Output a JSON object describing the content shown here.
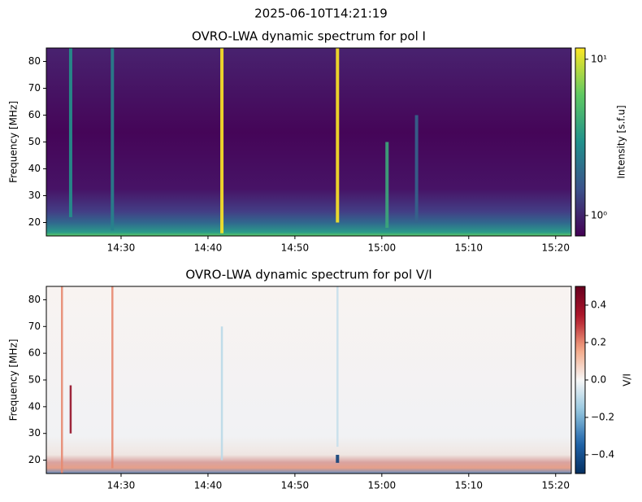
{
  "title": "2025-06-10T14:21:19",
  "chart_data": [
    {
      "type": "heatmap",
      "title": "OVRO-LWA dynamic spectrum for pol I",
      "ylabel": "Frequency [MHz]",
      "xlim": [
        861.4,
        921.8
      ],
      "xticks": [
        {
          "value": 870,
          "label": "14:30"
        },
        {
          "value": 880,
          "label": "14:40"
        },
        {
          "value": 890,
          "label": "14:50"
        },
        {
          "value": 900,
          "label": "15:00"
        },
        {
          "value": 910,
          "label": "15:10"
        },
        {
          "value": 920,
          "label": "15:20"
        }
      ],
      "ylim": [
        15,
        85
      ],
      "yticks": [
        20,
        30,
        40,
        50,
        60,
        70,
        80
      ],
      "colormap": "viridis",
      "colorscale": "log",
      "clim": [
        0.74,
        11.8
      ],
      "cticks": [
        {
          "value": 1,
          "label": "10⁰"
        },
        {
          "value": 10,
          "label": "10¹"
        }
      ],
      "clabel": "Intensity [s.f.u]",
      "bursts": [
        {
          "x": 864.2,
          "freq": [
            22,
            85
          ],
          "value": 3
        },
        {
          "x": 869.0,
          "freq": [
            17,
            85
          ],
          "value": 2.5
        },
        {
          "x": 881.6,
          "freq": [
            16,
            85
          ],
          "value": 12
        },
        {
          "x": 894.9,
          "freq": [
            20,
            85
          ],
          "value": 12
        },
        {
          "x": 900.6,
          "freq": [
            18,
            50
          ],
          "value": 4
        },
        {
          "x": 904.0,
          "freq": [
            20,
            60
          ],
          "value": 1.8
        }
      ]
    },
    {
      "type": "heatmap",
      "title": "OVRO-LWA dynamic spectrum for pol V/I",
      "ylabel": "Frequency [MHz]",
      "xlim": [
        861.4,
        921.8
      ],
      "xticks": [
        {
          "value": 870,
          "label": "14:30"
        },
        {
          "value": 880,
          "label": "14:40"
        },
        {
          "value": 890,
          "label": "14:50"
        },
        {
          "value": 900,
          "label": "15:00"
        },
        {
          "value": 910,
          "label": "15:10"
        },
        {
          "value": 920,
          "label": "15:20"
        }
      ],
      "ylim": [
        15,
        85
      ],
      "yticks": [
        20,
        30,
        40,
        50,
        60,
        70,
        80
      ],
      "colormap": "RdBu_r",
      "colorscale": "linear",
      "clim": [
        -0.5,
        0.5
      ],
      "cticks": [
        {
          "value": -0.4,
          "label": "−0.4"
        },
        {
          "value": -0.2,
          "label": "−0.2"
        },
        {
          "value": 0,
          "label": "0.0"
        },
        0.2,
        0.4
      ],
      "clabel": "V/I",
      "bursts": [
        {
          "x": 863.2,
          "freq": [
            15,
            85
          ],
          "value": 0.2
        },
        {
          "x": 864.2,
          "freq": [
            30,
            48
          ],
          "value": 0.4
        },
        {
          "x": 869.0,
          "freq": [
            17,
            85
          ],
          "value": 0.2
        },
        {
          "x": 881.6,
          "freq": [
            20,
            70
          ],
          "value": -0.1
        },
        {
          "x": 894.9,
          "freq": [
            19,
            22
          ],
          "value": -0.45
        },
        {
          "x": 894.9,
          "freq": [
            25,
            85
          ],
          "value": -0.08
        }
      ]
    }
  ]
}
